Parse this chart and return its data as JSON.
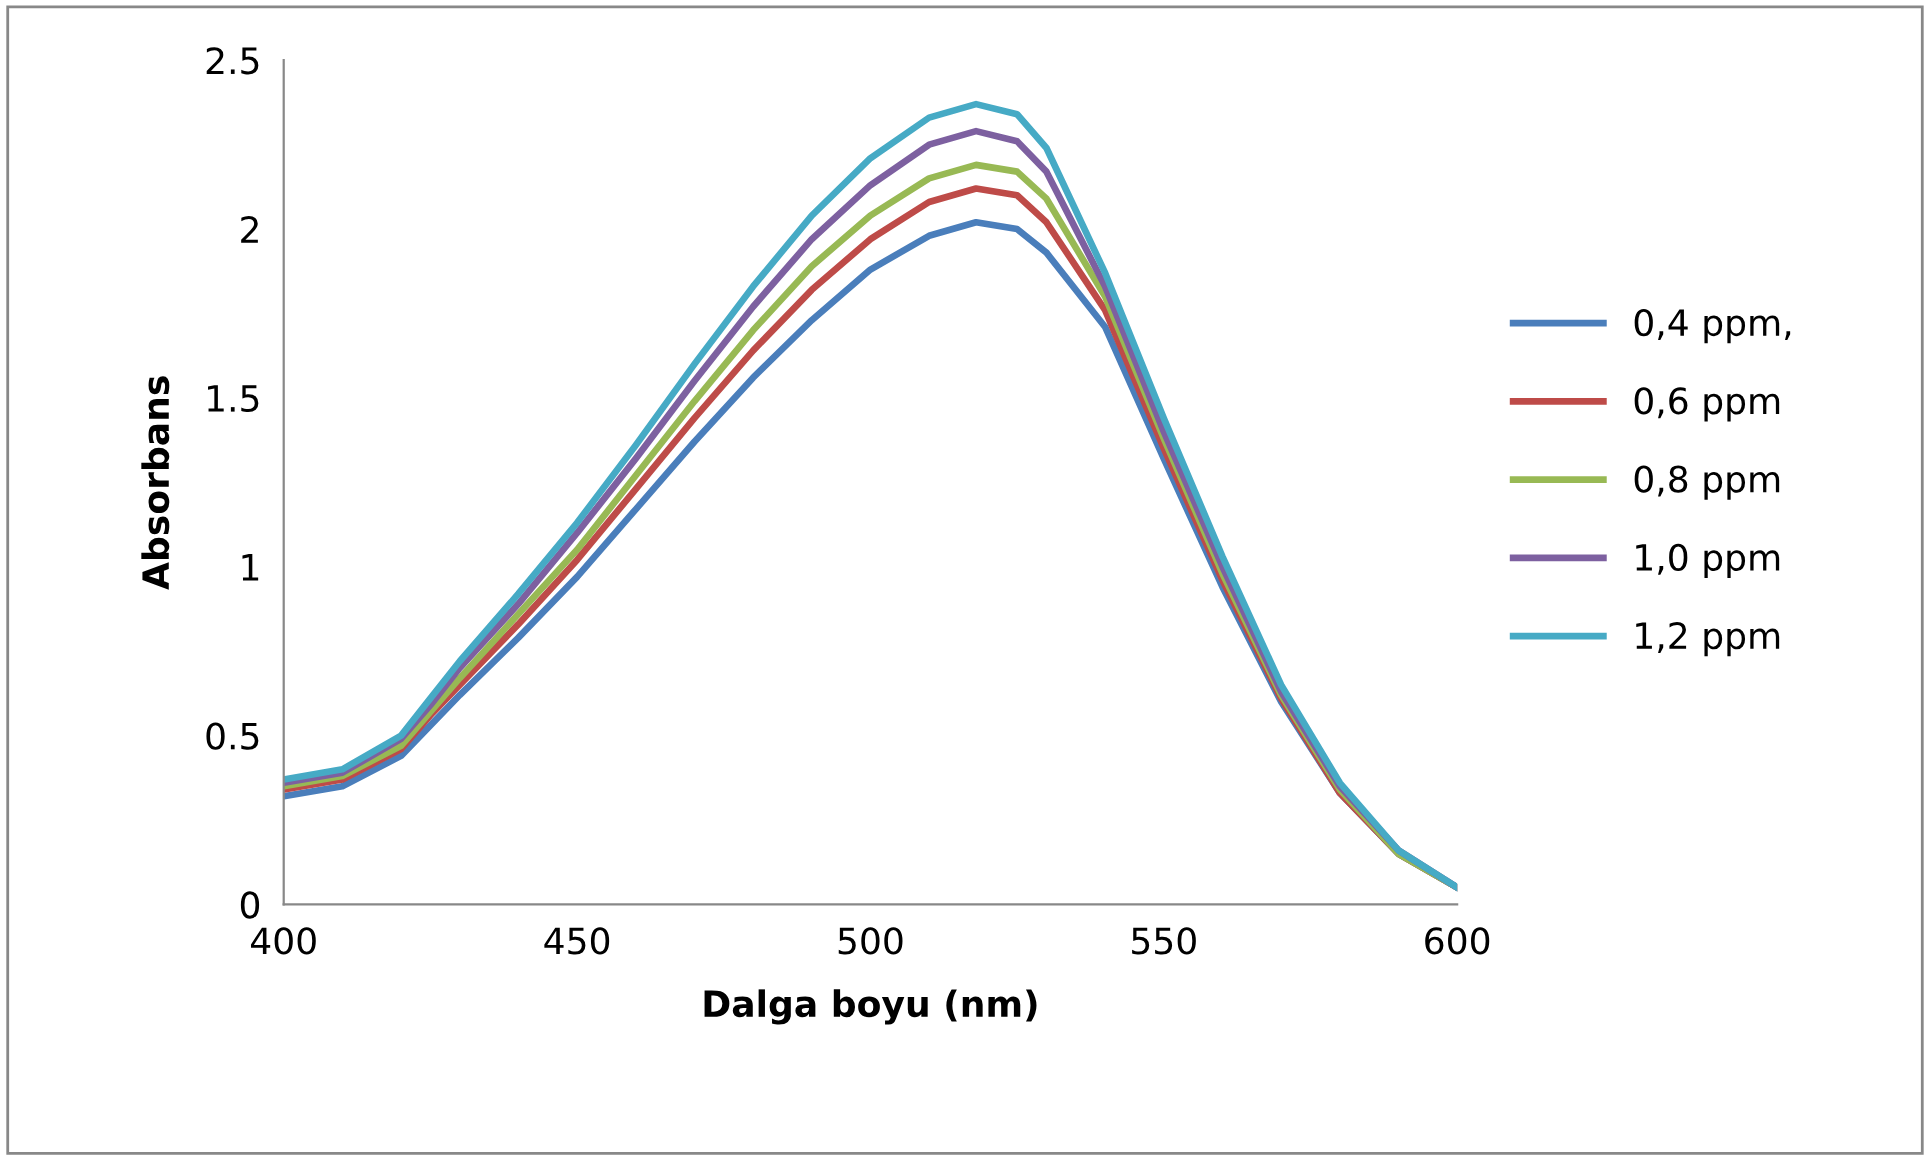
{
  "chart_data": {
    "type": "line",
    "xlabel": "Dalga boyu (nm)",
    "ylabel": "Absorbans",
    "x": [
      400,
      410,
      420,
      425,
      430,
      440,
      450,
      460,
      470,
      480,
      490,
      500,
      510,
      518,
      525,
      530,
      540,
      550,
      560,
      570,
      580,
      590,
      600
    ],
    "xlim": [
      400,
      600
    ],
    "xticks": [
      400,
      450,
      500,
      550,
      600
    ],
    "ylim": [
      0,
      2.5
    ],
    "yticks": [
      0,
      0.5,
      1,
      1.5,
      2,
      2.5
    ],
    "grid": false,
    "legend": "right",
    "marker": "none",
    "line_style": "solid",
    "series": [
      {
        "name": "0,4 ppm,",
        "color": "#4a7ebb",
        "values": [
          0.32,
          0.35,
          0.44,
          0.53,
          0.62,
          0.79,
          0.97,
          1.17,
          1.37,
          1.56,
          1.73,
          1.88,
          1.98,
          2.02,
          2.0,
          1.93,
          1.71,
          1.32,
          0.94,
          0.6,
          0.33,
          0.15,
          0.05
        ]
      },
      {
        "name": "0,6 ppm",
        "color": "#be4b48",
        "values": [
          0.34,
          0.37,
          0.46,
          0.56,
          0.65,
          0.83,
          1.02,
          1.23,
          1.44,
          1.64,
          1.82,
          1.97,
          2.08,
          2.12,
          2.1,
          2.02,
          1.76,
          1.35,
          0.96,
          0.61,
          0.33,
          0.15,
          0.05
        ]
      },
      {
        "name": "0,8 ppm",
        "color": "#98b954",
        "values": [
          0.35,
          0.38,
          0.47,
          0.57,
          0.67,
          0.86,
          1.05,
          1.27,
          1.49,
          1.7,
          1.89,
          2.04,
          2.15,
          2.19,
          2.17,
          2.09,
          1.8,
          1.38,
          0.98,
          0.62,
          0.34,
          0.15,
          0.05
        ]
      },
      {
        "name": "1,0 ppm",
        "color": "#7d60a0",
        "values": [
          0.36,
          0.39,
          0.49,
          0.59,
          0.7,
          0.89,
          1.1,
          1.32,
          1.55,
          1.77,
          1.97,
          2.13,
          2.25,
          2.29,
          2.26,
          2.17,
          1.83,
          1.4,
          1.0,
          0.63,
          0.35,
          0.16,
          0.05
        ]
      },
      {
        "name": "1,2 ppm",
        "color": "#46aac5",
        "values": [
          0.37,
          0.4,
          0.5,
          0.61,
          0.72,
          0.92,
          1.13,
          1.36,
          1.6,
          1.83,
          2.04,
          2.21,
          2.33,
          2.37,
          2.34,
          2.24,
          1.87,
          1.44,
          1.03,
          0.65,
          0.36,
          0.16,
          0.05
        ]
      }
    ]
  }
}
